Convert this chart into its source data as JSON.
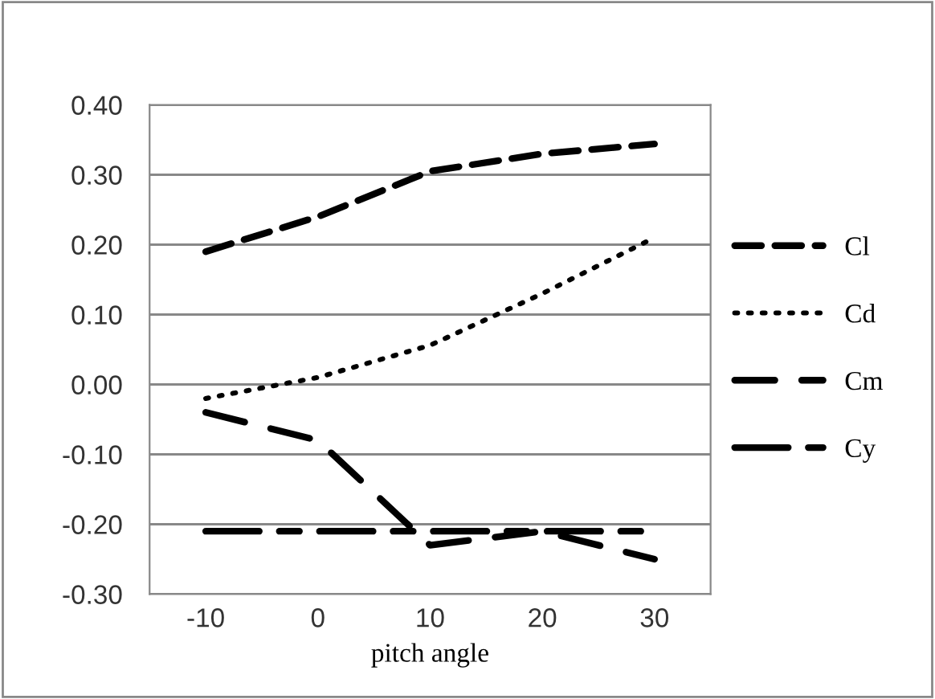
{
  "chart_data": {
    "type": "line",
    "xlabel": "pitch angle",
    "categories": [
      "-10",
      "0",
      "10",
      "20",
      "30"
    ],
    "series": [
      {
        "name": "Cl",
        "color": "#000000",
        "line_style": "dashed",
        "values": [
          0.19,
          0.24,
          0.305,
          0.33,
          0.344
        ]
      },
      {
        "name": "Cd",
        "color": "#000000",
        "line_style": "dotted",
        "values": [
          -0.02,
          0.01,
          0.056,
          0.13,
          0.21
        ]
      },
      {
        "name": "Cm",
        "color": "#000000",
        "line_style": "longdash",
        "values": [
          -0.04,
          -0.08,
          -0.23,
          -0.21,
          -0.25
        ]
      },
      {
        "name": "Cy",
        "color": "#000000",
        "line_style": "dashdot",
        "values": [
          -0.21,
          -0.21,
          -0.21,
          -0.21,
          -0.21
        ]
      }
    ],
    "ylim": [
      -0.3,
      0.4
    ],
    "yticks": [
      {
        "value": -0.3,
        "label": "-0.30"
      },
      {
        "value": -0.2,
        "label": "-0.20"
      },
      {
        "value": -0.1,
        "label": "-0.10"
      },
      {
        "value": 0,
        "label": "0.00"
      },
      {
        "value": 0.1,
        "label": "0.10"
      },
      {
        "value": 0.2,
        "label": "0.20"
      },
      {
        "value": 0.3,
        "label": "0.30"
      },
      {
        "value": 0.4,
        "label": "0.40"
      }
    ],
    "grid": "y",
    "legend": "right",
    "marker": "none"
  }
}
